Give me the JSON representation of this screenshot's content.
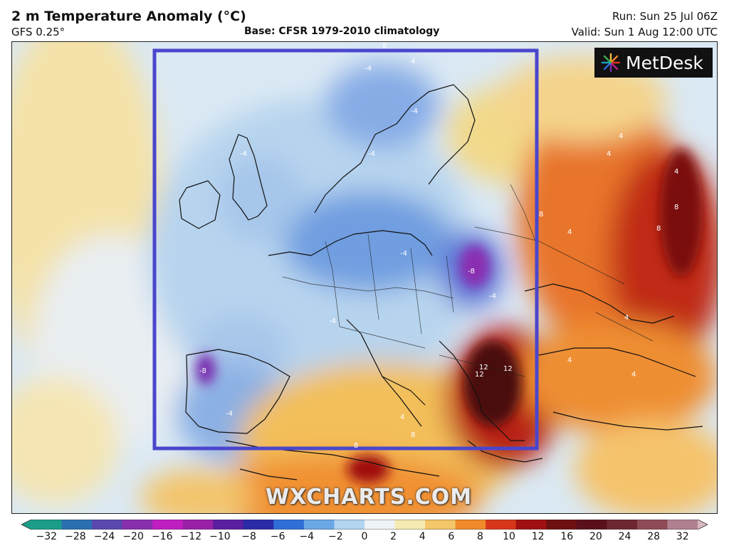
{
  "header": {
    "title": "2 m Temperature Anomaly (°C)",
    "model": "GFS 0.25°",
    "base": "Base: CFSR 1979-2010 climatology",
    "run": "Run: Sun 25 Jul 06Z",
    "valid": "Valid: Sun 1 Aug 12:00 UTC"
  },
  "branding": {
    "logo": "MetDesk",
    "watermark": "WXCHARTS.COM"
  },
  "colorbar": {
    "ticks": [
      "−32",
      "−28",
      "−24",
      "−20",
      "−16",
      "−12",
      "−10",
      "−8",
      "−6",
      "−4",
      "−2",
      "0",
      "2",
      "4",
      "6",
      "8",
      "10",
      "12",
      "16",
      "20",
      "24",
      "28",
      "32"
    ],
    "colors": [
      "#1a9e8a",
      "#2a6fb0",
      "#5a48b0",
      "#8a2fb0",
      "#c01ec0",
      "#9a20a8",
      "#5a1fa0",
      "#2a2aa8",
      "#2f6fd8",
      "#6aa7e6",
      "#b3d5f0",
      "#eef3f7",
      "#f6eab3",
      "#f4c66a",
      "#f08a2a",
      "#d8361a",
      "#a01010",
      "#6e0f10",
      "#5a0f1a",
      "#6e2630",
      "#8e4b55",
      "#b08090",
      "#d8b8c0"
    ],
    "highlight_box_color": "#4a46cc"
  },
  "map_labels": [
    "8",
    "4",
    "-4",
    "-4",
    "-4",
    "-4",
    "-4",
    "-4",
    "-8",
    "-4",
    "-8",
    "-4",
    "4",
    "4",
    "4",
    "8",
    "8",
    "8",
    "4",
    "4",
    "12",
    "12",
    "12",
    "4",
    "4",
    "4",
    "8",
    "8"
  ]
}
